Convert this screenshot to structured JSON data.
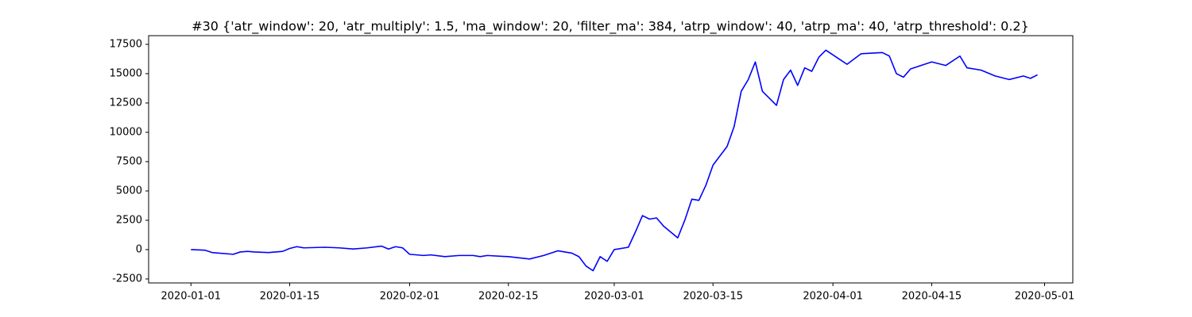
{
  "chart_data": {
    "type": "line",
    "title": "#30 {'atr_window': 20, 'atr_multiply': 1.5, 'ma_window': 20, 'filter_ma': 384, 'atrp_window': 40, 'atrp_ma': 40, 'atrp_threshold': 0.2}",
    "color": "#0000ff",
    "x": [
      "2020-01-01",
      "2020-01-03",
      "2020-01-04",
      "2020-01-07",
      "2020-01-08",
      "2020-01-09",
      "2020-01-10",
      "2020-01-12",
      "2020-01-14",
      "2020-01-15",
      "2020-01-16",
      "2020-01-17",
      "2020-01-20",
      "2020-01-22",
      "2020-01-24",
      "2020-01-26",
      "2020-01-28",
      "2020-01-29",
      "2020-01-30",
      "2020-01-31",
      "2020-02-01",
      "2020-02-03",
      "2020-02-04",
      "2020-02-06",
      "2020-02-08",
      "2020-02-10",
      "2020-02-11",
      "2020-02-12",
      "2020-02-15",
      "2020-02-18",
      "2020-02-20",
      "2020-02-22",
      "2020-02-24",
      "2020-02-25",
      "2020-02-26",
      "2020-02-27",
      "2020-02-28",
      "2020-02-29",
      "2020-03-01",
      "2020-03-03",
      "2020-03-04",
      "2020-03-05",
      "2020-03-06",
      "2020-03-07",
      "2020-03-08",
      "2020-03-10",
      "2020-03-11",
      "2020-03-12",
      "2020-03-13",
      "2020-03-14",
      "2020-03-15",
      "2020-03-17",
      "2020-03-18",
      "2020-03-19",
      "2020-03-20",
      "2020-03-21",
      "2020-03-22",
      "2020-03-24",
      "2020-03-25",
      "2020-03-26",
      "2020-03-27",
      "2020-03-28",
      "2020-03-29",
      "2020-03-30",
      "2020-03-31",
      "2020-04-02",
      "2020-04-03",
      "2020-04-05",
      "2020-04-08",
      "2020-04-09",
      "2020-04-10",
      "2020-04-11",
      "2020-04-12",
      "2020-04-15",
      "2020-04-17",
      "2020-04-19",
      "2020-04-20",
      "2020-04-22",
      "2020-04-24",
      "2020-04-26",
      "2020-04-28",
      "2020-04-29",
      "2020-04-30"
    ],
    "values": [
      0,
      -50,
      -250,
      -400,
      -200,
      -150,
      -200,
      -250,
      -150,
      100,
      250,
      150,
      200,
      150,
      50,
      150,
      300,
      50,
      250,
      150,
      -400,
      -500,
      -450,
      -600,
      -500,
      -500,
      -600,
      -500,
      -600,
      -800,
      -500,
      -100,
      -300,
      -600,
      -1400,
      -1800,
      -600,
      -1000,
      0,
      200,
      1500,
      2900,
      2600,
      2700,
      2000,
      1000,
      2500,
      4300,
      4200,
      5500,
      7200,
      8800,
      10500,
      13500,
      14500,
      16000,
      13500,
      12300,
      14500,
      15300,
      14000,
      15500,
      15200,
      16400,
      17000,
      16200,
      15800,
      16700,
      16800,
      16500,
      15000,
      14700,
      15400,
      16000,
      15700,
      16500,
      15500,
      15300,
      14800,
      14500,
      14800,
      14600,
      14900
    ],
    "xlim": [
      "2019-12-26",
      "2020-05-05"
    ],
    "xticks": [
      "2020-01-01",
      "2020-01-15",
      "2020-02-01",
      "2020-02-15",
      "2020-03-01",
      "2020-03-15",
      "2020-04-01",
      "2020-04-15",
      "2020-05-01"
    ],
    "ylim": [
      -2840,
      18240
    ],
    "yticks": [
      -2500,
      0,
      2500,
      5000,
      7500,
      10000,
      12500,
      15000,
      17500
    ]
  }
}
